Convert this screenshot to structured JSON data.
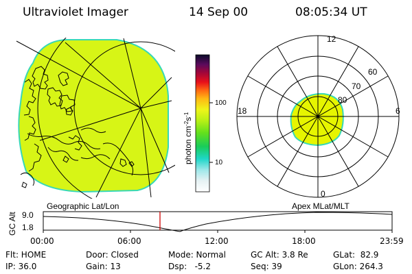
{
  "header": {
    "title": "Ultraviolet Imager",
    "date": "14 Sep 00",
    "time": "08:05:34 UT"
  },
  "colors": {
    "image_fill": "#d7f516",
    "image_edge": "#37d8b6",
    "oval_fill": "#e6f500",
    "timeline_marker": "#d00000"
  },
  "colorbar": {
    "unit_label": "photon cm",
    "unit_sup1": "-2",
    "unit_mid": "s",
    "unit_sup2": "-1",
    "tick_100": "100",
    "tick_10": "10"
  },
  "geo_panel": {
    "label": "Geographic Lat/Lon"
  },
  "polar_panel": {
    "label": "Apex  MLat/MLT",
    "mlt_top": "12",
    "mlt_bottom": "0",
    "mlt_left": "18",
    "mlt_right": "6",
    "lat_60": "60",
    "lat_70": "70",
    "lat_80": "80"
  },
  "timeline": {
    "axis_label": "GC Alt",
    "y_max": "9.0",
    "y_min": "1.8",
    "ticks": [
      "00:00",
      "06:00",
      "12:00",
      "18:00",
      "23:59"
    ],
    "marker_time": "08:05:34"
  },
  "status": {
    "flt": "Flt: HOME",
    "ip": "IP: 36.0",
    "door": "Door: Closed",
    "gain": "Gain: 13",
    "mode": "Mode: Normal",
    "dsp": "Dsp:   -5.2",
    "gc_alt": "GC Alt: 3.8 Re",
    "seq": "Seq: 39",
    "glat": "GLat:  82.9",
    "glon": "GLon: 264.3"
  }
}
